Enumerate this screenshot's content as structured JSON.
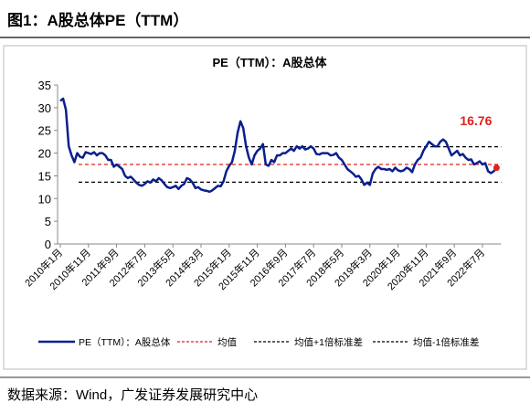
{
  "header": {
    "title": "图1：A股总体PE（TTM）"
  },
  "footer": {
    "source": "数据来源：Wind，广发证券发展研究中心"
  },
  "chart_data": {
    "type": "line",
    "title": "PE（TTM）：A股总体",
    "categories": [
      "2010年1月",
      null,
      null,
      null,
      null,
      null,
      null,
      null,
      null,
      null,
      "2010年11月",
      null,
      null,
      null,
      null,
      null,
      null,
      null,
      null,
      null,
      "2011年9月",
      null,
      null,
      null,
      null,
      null,
      null,
      null,
      null,
      null,
      "2012年7月",
      null,
      null,
      null,
      null,
      null,
      null,
      null,
      null,
      null,
      "2013年5月",
      null,
      null,
      null,
      null,
      null,
      null,
      null,
      null,
      null,
      "2014年3月",
      null,
      null,
      null,
      null,
      null,
      null,
      null,
      null,
      null,
      "2015年1月",
      null,
      null,
      null,
      null,
      null,
      null,
      null,
      null,
      null,
      "2015年11月",
      null,
      null,
      null,
      null,
      null,
      null,
      null,
      null,
      null,
      "2016年9月",
      null,
      null,
      null,
      null,
      null,
      null,
      null,
      null,
      null,
      "2017年7月",
      null,
      null,
      null,
      null,
      null,
      null,
      null,
      null,
      null,
      "2018年5月",
      null,
      null,
      null,
      null,
      null,
      null,
      null,
      null,
      null,
      "2019年3月",
      null,
      null,
      null,
      null,
      null,
      null,
      null,
      null,
      null,
      "2020年1月",
      null,
      null,
      null,
      null,
      null,
      null,
      null,
      null,
      null,
      "2020年11月",
      null,
      null,
      null,
      null,
      null,
      null,
      null,
      null,
      null,
      "2021年9月",
      null,
      null,
      null,
      null,
      null,
      null,
      null,
      null,
      null,
      "2022年7月",
      null,
      null,
      null,
      null,
      null
    ],
    "series": [
      {
        "name": "PE（TTM）：A股总体",
        "color": "#0a1f8f",
        "values": [
          31.5,
          32,
          29.5,
          21.5,
          19.5,
          18,
          20,
          19.2,
          19,
          20.2,
          20,
          19.8,
          20.2,
          19.5,
          20,
          20,
          19.5,
          18.5,
          18.5,
          17,
          17.5,
          17,
          16.5,
          15,
          14.5,
          14.8,
          14.2,
          13.5,
          13,
          12.8,
          13.2,
          13.8,
          13.5,
          14.2,
          13.8,
          14.5,
          14,
          13.2,
          12.5,
          12.3,
          12.5,
          12.8,
          12.1,
          12.8,
          13.2,
          14.5,
          14.2,
          13.5,
          12.3,
          12.5,
          12,
          11.8,
          11.7,
          11.5,
          11.8,
          12.3,
          12.8,
          12.7,
          13.8,
          16,
          17.2,
          18,
          20.5,
          24.5,
          27,
          25.5,
          21.5,
          19,
          17.5,
          19.5,
          20.5,
          21,
          22,
          17.5,
          17.2,
          18.5,
          18,
          19.5,
          19.5,
          20,
          20,
          20.5,
          21,
          20.5,
          21.5,
          21,
          21.5,
          20.8,
          21,
          21.5,
          21,
          19.8,
          19.7,
          20,
          20,
          20,
          19.5,
          19.6,
          20,
          19,
          18.5,
          17.5,
          16.5,
          16,
          15.5,
          14.8,
          15,
          14.2,
          13,
          13.5,
          13,
          15.5,
          16.5,
          17,
          16.5,
          16.5,
          16.3,
          16.5,
          16,
          16.8,
          16.2,
          16,
          16.2,
          16.8,
          16.5,
          15.8,
          17.5,
          18.5,
          19,
          20.5,
          21.5,
          22.5,
          22,
          21.5,
          21.5,
          22.5,
          23,
          22.5,
          21,
          19.5,
          20,
          20.5,
          19.5,
          19.8,
          19,
          18.5,
          18.6,
          17.5,
          17.8,
          18.2,
          17.5,
          17.8,
          16,
          15.6,
          16,
          16.76
        ]
      }
    ],
    "reference_lines": [
      {
        "name": "均值",
        "value": 17.5,
        "color": "#e0201b"
      },
      {
        "name": "均值+1倍标准差",
        "value": 21.4,
        "color": "#000000"
      },
      {
        "name": "均值-1倍标准差",
        "value": 13.6,
        "color": "#000000"
      }
    ],
    "last_label": "16.76",
    "last_label_color": "#e0201b",
    "ylim": [
      0,
      35
    ],
    "yticks": [
      0,
      5,
      10,
      15,
      20,
      25,
      30,
      35
    ]
  }
}
